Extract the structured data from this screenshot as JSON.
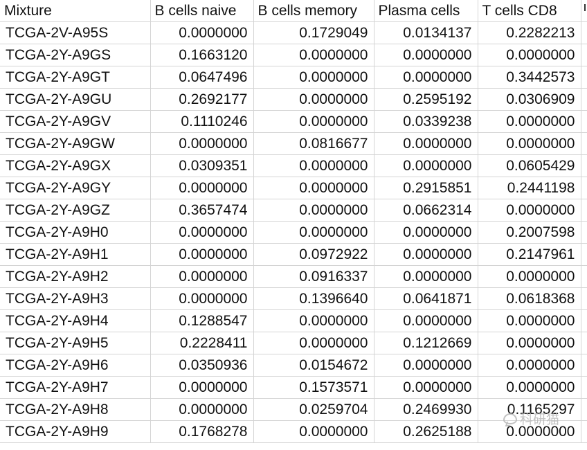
{
  "headers": [
    "Mixture",
    "B cells naive",
    "B cells memory",
    "Plasma cells",
    "T cells CD8"
  ],
  "rows": [
    [
      "TCGA-2V-A95S",
      "0.0000000",
      "0.1729049",
      "0.0134137",
      "0.2282213"
    ],
    [
      "TCGA-2Y-A9GS",
      "0.1663120",
      "0.0000000",
      "0.0000000",
      "0.0000000"
    ],
    [
      "TCGA-2Y-A9GT",
      "0.0647496",
      "0.0000000",
      "0.0000000",
      "0.3442573"
    ],
    [
      "TCGA-2Y-A9GU",
      "0.2692177",
      "0.0000000",
      "0.2595192",
      "0.0306909"
    ],
    [
      "TCGA-2Y-A9GV",
      "0.1110246",
      "0.0000000",
      "0.0339238",
      "0.0000000"
    ],
    [
      "TCGA-2Y-A9GW",
      "0.0000000",
      "0.0816677",
      "0.0000000",
      "0.0000000"
    ],
    [
      "TCGA-2Y-A9GX",
      "0.0309351",
      "0.0000000",
      "0.0000000",
      "0.0605429"
    ],
    [
      "TCGA-2Y-A9GY",
      "0.0000000",
      "0.0000000",
      "0.2915851",
      "0.2441198"
    ],
    [
      "TCGA-2Y-A9GZ",
      "0.3657474",
      "0.0000000",
      "0.0662314",
      "0.0000000"
    ],
    [
      "TCGA-2Y-A9H0",
      "0.0000000",
      "0.0000000",
      "0.0000000",
      "0.2007598"
    ],
    [
      "TCGA-2Y-A9H1",
      "0.0000000",
      "0.0972922",
      "0.0000000",
      "0.2147961"
    ],
    [
      "TCGA-2Y-A9H2",
      "0.0000000",
      "0.0916337",
      "0.0000000",
      "0.0000000"
    ],
    [
      "TCGA-2Y-A9H3",
      "0.0000000",
      "0.1396640",
      "0.0641871",
      "0.0618368"
    ],
    [
      "TCGA-2Y-A9H4",
      "0.1288547",
      "0.0000000",
      "0.0000000",
      "0.0000000"
    ],
    [
      "TCGA-2Y-A9H5",
      "0.2228411",
      "0.0000000",
      "0.1212669",
      "0.0000000"
    ],
    [
      "TCGA-2Y-A9H6",
      "0.0350936",
      "0.0154672",
      "0.0000000",
      "0.0000000"
    ],
    [
      "TCGA-2Y-A9H7",
      "0.0000000",
      "0.1573571",
      "0.0000000",
      "0.0000000"
    ],
    [
      "TCGA-2Y-A9H8",
      "0.0000000",
      "0.0259704",
      "0.2469930",
      "0.1165297"
    ],
    [
      "TCGA-2Y-A9H9",
      "0.1768278",
      "0.0000000",
      "0.2625188",
      "0.0000000"
    ]
  ],
  "watermark": {
    "icon": "wechat-icon",
    "text": "科研猫"
  }
}
